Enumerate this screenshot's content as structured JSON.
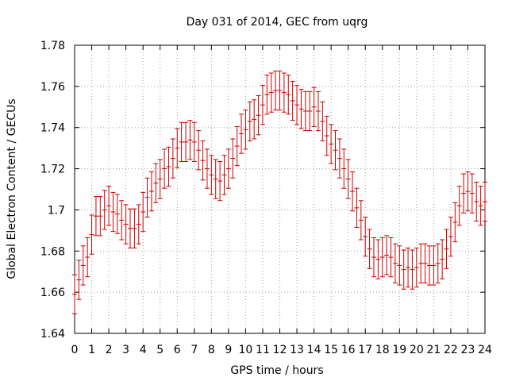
{
  "chart_data": {
    "type": "scatter",
    "title": "Day 031 of 2014, GEC from uqrg",
    "xlabel": "GPS time / hours",
    "ylabel": "Global Electron Content / GECUs",
    "xlim": [
      0,
      24
    ],
    "ylim": [
      1.64,
      1.78
    ],
    "grid": true,
    "x_ticks": [
      0,
      1,
      2,
      3,
      4,
      5,
      6,
      7,
      8,
      9,
      10,
      11,
      12,
      13,
      14,
      15,
      16,
      17,
      18,
      19,
      20,
      21,
      22,
      23,
      24
    ],
    "x_tick_labels": [
      "0",
      "1",
      "2",
      "3",
      "4",
      "5",
      "6",
      "7",
      "8",
      "9",
      "10",
      "11",
      "12",
      "13",
      "14",
      "15",
      "16",
      "17",
      "18",
      "19",
      "20",
      "21",
      "22",
      "23",
      "24"
    ],
    "y_ticks": [
      1.64,
      1.66,
      1.68,
      1.7,
      1.72,
      1.74,
      1.76,
      1.78
    ],
    "y_tick_labels": [
      "1.64",
      "1.66",
      "1.68",
      "1.7",
      "1.72",
      "1.74",
      "1.76",
      "1.78"
    ],
    "series_color": "#cc0000",
    "series": [
      {
        "name": "GEC",
        "error": 0.0095,
        "x": [
          0,
          0.25,
          0.5,
          0.75,
          1,
          1.25,
          1.5,
          1.75,
          2,
          2.25,
          2.5,
          2.75,
          3,
          3.25,
          3.5,
          3.75,
          4,
          4.25,
          4.5,
          4.75,
          5,
          5.25,
          5.5,
          5.75,
          6,
          6.25,
          6.5,
          6.75,
          7,
          7.25,
          7.5,
          7.75,
          8,
          8.25,
          8.5,
          8.75,
          9,
          9.25,
          9.5,
          9.75,
          10,
          10.25,
          10.5,
          10.75,
          11,
          11.25,
          11.5,
          11.75,
          12,
          12.25,
          12.5,
          12.75,
          13,
          13.25,
          13.5,
          13.75,
          14,
          14.25,
          14.5,
          14.75,
          15,
          15.25,
          15.5,
          15.75,
          16,
          16.25,
          16.5,
          16.75,
          17,
          17.25,
          17.5,
          17.75,
          18,
          18.25,
          18.5,
          18.75,
          19,
          19.25,
          19.5,
          19.75,
          20,
          20.25,
          20.5,
          20.75,
          21,
          21.25,
          21.5,
          21.75,
          22,
          22.25,
          22.5,
          22.75,
          23,
          23.25,
          23.5,
          23.75,
          24
        ],
        "y": [
          1.659,
          1.666,
          1.673,
          1.677,
          1.688,
          1.697,
          1.697,
          1.7,
          1.702,
          1.699,
          1.698,
          1.695,
          1.693,
          1.691,
          1.691,
          1.693,
          1.699,
          1.706,
          1.709,
          1.713,
          1.715,
          1.72,
          1.721,
          1.725,
          1.73,
          1.733,
          1.733,
          1.734,
          1.733,
          1.729,
          1.724,
          1.72,
          1.717,
          1.715,
          1.714,
          1.717,
          1.72,
          1.725,
          1.731,
          1.737,
          1.739,
          1.743,
          1.744,
          1.746,
          1.751,
          1.756,
          1.757,
          1.758,
          1.758,
          1.757,
          1.756,
          1.753,
          1.751,
          1.749,
          1.748,
          1.748,
          1.75,
          1.748,
          1.743,
          1.736,
          1.732,
          1.729,
          1.725,
          1.72,
          1.715,
          1.709,
          1.701,
          1.695,
          1.687,
          1.681,
          1.677,
          1.676,
          1.677,
          1.678,
          1.677,
          1.674,
          1.673,
          1.671,
          1.672,
          1.671,
          1.672,
          1.674,
          1.674,
          1.673,
          1.673,
          1.674,
          1.676,
          1.681,
          1.687,
          1.694,
          1.702,
          1.708,
          1.709,
          1.708,
          1.704,
          1.702,
          1.704
        ]
      }
    ]
  }
}
